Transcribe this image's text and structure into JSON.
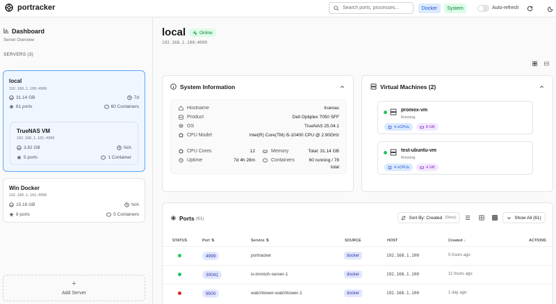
{
  "app": {
    "name": "portracker"
  },
  "topbar": {
    "search_placeholder": "Search ports, processes...",
    "filter_docker": "Docker",
    "filter_system": "System",
    "auto_refresh_label": "Auto-refresh",
    "auto_refresh_on": false
  },
  "sidebar": {
    "title": "Dashboard",
    "subtitle": "Server Overview",
    "servers_heading": "SERVERS (3)",
    "add_server_label": "Add Server",
    "servers": [
      {
        "name": "local",
        "ip": "192.168.1.100:4999",
        "memory": "31.14 GB",
        "uptime": "7d",
        "ports": "61 ports",
        "containers": "60 Containers",
        "selected": true
      },
      {
        "name": "TrueNAS VM",
        "ip": "192.168.1.101:4999",
        "memory": "3.82 GB",
        "uptime": "N/A",
        "ports": "5 ports",
        "containers": "1 Container"
      },
      {
        "name": "Win Docker",
        "ip": "192.168.1.102:4999",
        "memory": "15.18 GB",
        "uptime": "N/A",
        "ports": "8 ports",
        "containers": "5 Containers"
      }
    ]
  },
  "header": {
    "title": "local",
    "status": "Online",
    "address": "192.168.1.100:4999"
  },
  "system_info": {
    "title": "System Information",
    "hostname_label": "Hostname",
    "hostname": "truenas",
    "product_label": "Product",
    "product": "Dell Optiplex 7050 SFF",
    "os_label": "OS",
    "os": "TrueNAS 25.04.1",
    "cpu_label": "CPU Model",
    "cpu": "Intel(R) Core(TM) i5-10400 CPU @ 2.90GHz",
    "cores_label": "CPU Cores",
    "cores": "12",
    "memory_label": "Memory",
    "memory": "Total: 31.14 GB",
    "uptime_label": "Uptime",
    "uptime": "7d 4h 28m",
    "containers_label": "Containers",
    "containers_line1": "60 running / 78",
    "containers_line2": "total"
  },
  "vms": {
    "title": "Virtual Machines (2)",
    "items": [
      {
        "name": "promox-vm",
        "status": "Running",
        "vcpus": "4 vCPUs",
        "ram": "8 GB"
      },
      {
        "name": "test-ubuntu-vm",
        "status": "Running",
        "vcpus": "4 vCPUs",
        "ram": "4 GB"
      }
    ]
  },
  "ports": {
    "title": "Ports",
    "count": "(61)",
    "sort_label": "Sort By: Created",
    "sort_dir": "(Desc)",
    "show_all_label": "Show All (61)",
    "columns": {
      "status": "STATUS",
      "port": "Port",
      "service": "Service",
      "source": "SOURCE",
      "host": "HOST",
      "created": "Created",
      "actions": "ACTIONS"
    },
    "rows": [
      {
        "status": "up",
        "port": "4999",
        "service": "portracker",
        "source": "docker",
        "host": "192.168.1.100",
        "created": "5 hours ago"
      },
      {
        "status": "up",
        "port": "30041",
        "service": "ix-immich-server-1",
        "source": "docker",
        "host": "192.168.1.100",
        "created": "11 hours ago"
      },
      {
        "status": "down",
        "port": "9500",
        "service": "watchtower-watchtower-1",
        "source": "docker",
        "host": "192.168.1.100",
        "created": "1 day ago"
      }
    ]
  },
  "colors": {
    "accent": "#3b82f6",
    "online": "#16a34a",
    "down": "#dc2626",
    "docker_chip": "#dbeafe",
    "system_chip": "#dcfce7"
  }
}
